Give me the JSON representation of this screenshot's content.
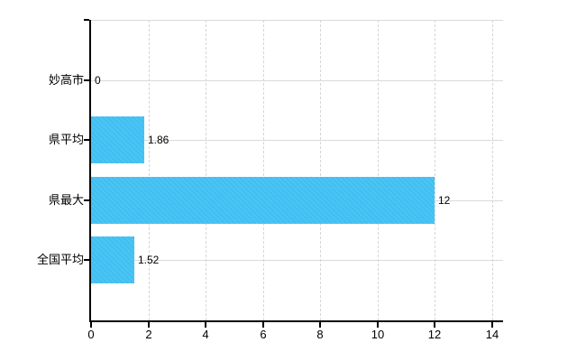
{
  "chart_data": {
    "type": "bar",
    "orientation": "horizontal",
    "categories": [
      "妙高市",
      "県平均",
      "県最大",
      "全国平均"
    ],
    "values": [
      0,
      1.86,
      12,
      1.52
    ],
    "value_labels": [
      "0",
      "1.86",
      "12",
      "1.52"
    ],
    "x_ticks": [
      0,
      2,
      4,
      6,
      8,
      10,
      12,
      14
    ],
    "x_tick_labels": [
      "0",
      "2",
      "4",
      "6",
      "8",
      "10",
      "12",
      "14"
    ],
    "xlim": [
      0,
      14
    ],
    "grid": true,
    "legend": "none",
    "bar_color": "#41bef0",
    "grid_color": "#d9d9d9",
    "axis_color": "#000000",
    "text_color": "#000000",
    "background_color": "#ffffff"
  }
}
